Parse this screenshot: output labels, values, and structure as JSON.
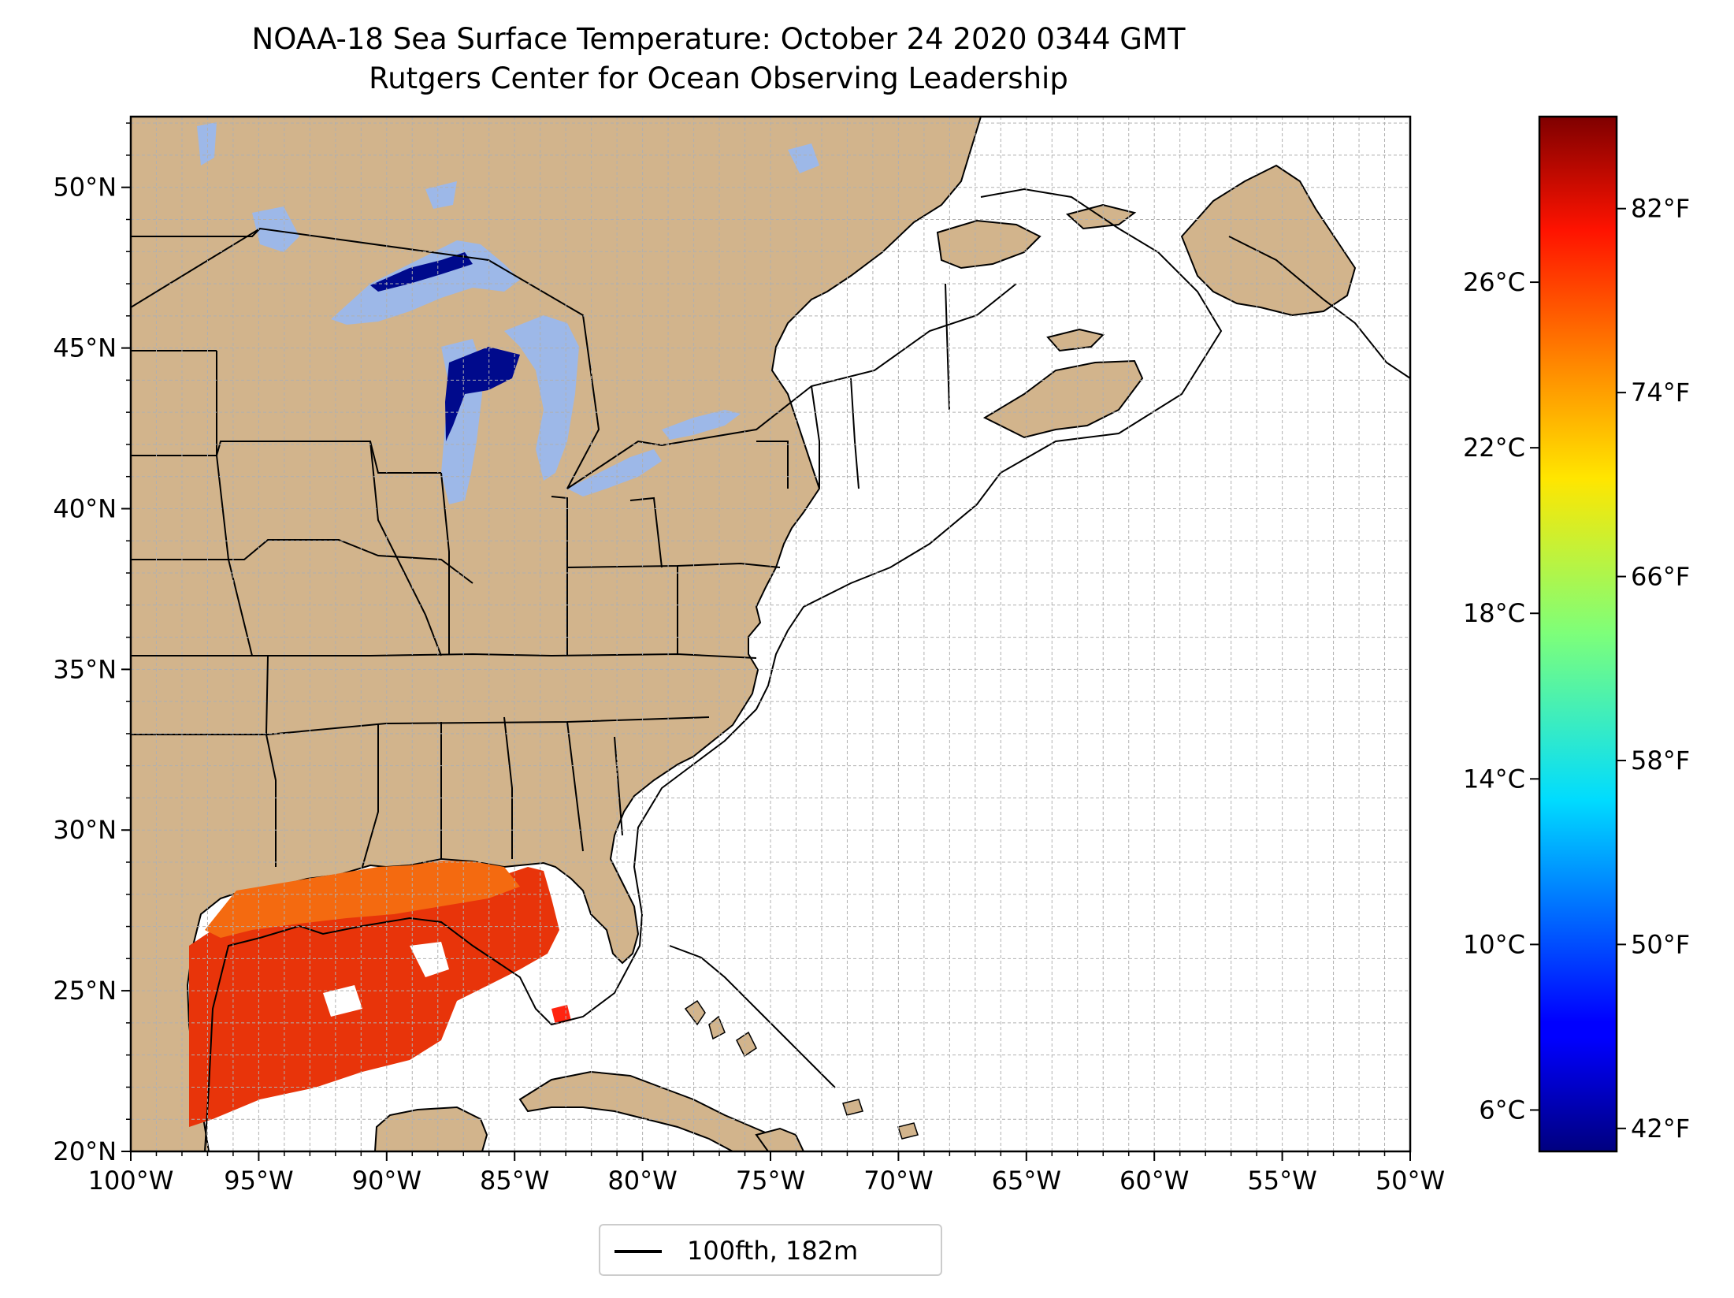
{
  "title_line1": "NOAA-18 Sea Surface Temperature: October 24 2020 0344 GMT",
  "title_line2": "Rutgers Center for Ocean Observing Leadership",
  "map": {
    "lon_range": [
      -100,
      -50
    ],
    "lat_range": [
      20,
      52.2
    ],
    "lat_ticks": [
      {
        "value": 50,
        "label": "50°N"
      },
      {
        "value": 45,
        "label": "45°N"
      },
      {
        "value": 40,
        "label": "40°N"
      },
      {
        "value": 35,
        "label": "35°N"
      },
      {
        "value": 30,
        "label": "30°N"
      },
      {
        "value": 25,
        "label": "25°N"
      },
      {
        "value": 20,
        "label": "20°N"
      }
    ],
    "lon_ticks": [
      {
        "value": -100,
        "label": "100°W"
      },
      {
        "value": -95,
        "label": "95°W"
      },
      {
        "value": -90,
        "label": "90°W"
      },
      {
        "value": -85,
        "label": "85°W"
      },
      {
        "value": -80,
        "label": "80°W"
      },
      {
        "value": -75,
        "label": "75°W"
      },
      {
        "value": -70,
        "label": "70°W"
      },
      {
        "value": -65,
        "label": "65°W"
      },
      {
        "value": -60,
        "label": "60°W"
      },
      {
        "value": -55,
        "label": "55°W"
      },
      {
        "value": -50,
        "label": "50°W"
      }
    ],
    "grid_step_deg": 1
  },
  "colorbar": {
    "colormap": "jet",
    "celsius_range": [
      5,
      30
    ],
    "celsius_ticks": [
      {
        "value": 26,
        "label": "26°C"
      },
      {
        "value": 22,
        "label": "22°C"
      },
      {
        "value": 18,
        "label": "18°C"
      },
      {
        "value": 14,
        "label": "14°C"
      },
      {
        "value": 10,
        "label": "10°C"
      },
      {
        "value": 6,
        "label": "6°C"
      }
    ],
    "fahrenheit_ticks": [
      {
        "value": 82,
        "label": "82°F"
      },
      {
        "value": 74,
        "label": "74°F"
      },
      {
        "value": 66,
        "label": "66°F"
      },
      {
        "value": 58,
        "label": "58°F"
      },
      {
        "value": 50,
        "label": "50°F"
      },
      {
        "value": 42,
        "label": "42°F"
      }
    ]
  },
  "legend": {
    "label": "100fth, 182m"
  },
  "colors": {
    "land": "#d2b48c",
    "lakes": "#9db8e8",
    "gulf_sst": "#e8340a",
    "gulf_sst_light": "#f46a10",
    "lake_cold": "#000a8c",
    "grid": "#b0b0b0"
  }
}
